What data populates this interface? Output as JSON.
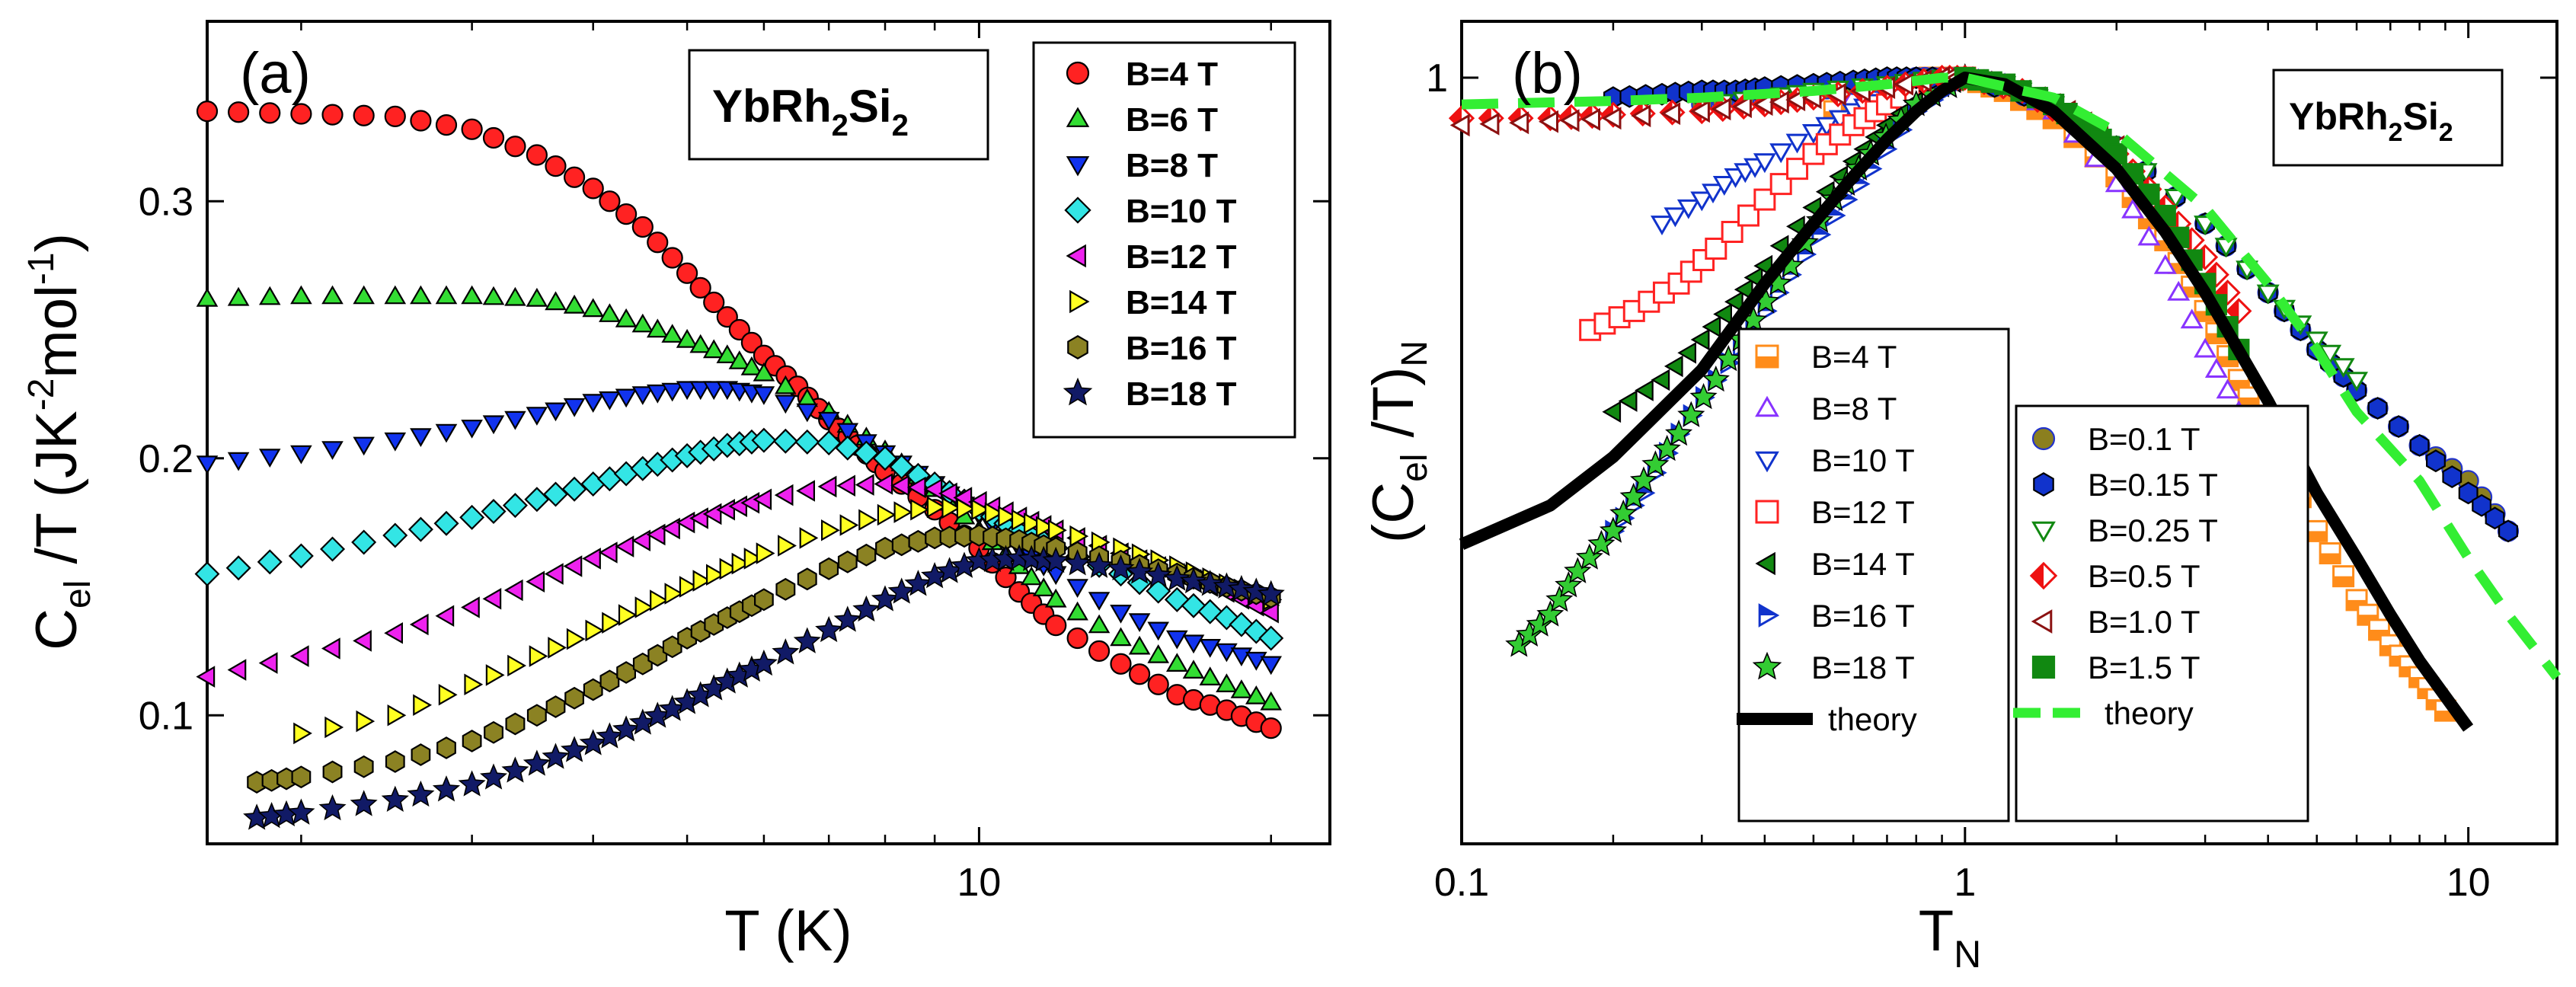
{
  "figure": {
    "panel_a": {
      "label": "(a)",
      "material": "YbRh",
      "sub1": "2",
      "mid": "Si",
      "sub2": "2"
    },
    "panel_b": {
      "label": "(b)",
      "material": "YbRh",
      "sub1": "2",
      "mid": "Si",
      "sub2": "2"
    }
  },
  "chart_data": [
    {
      "id": "a",
      "type": "scatter",
      "xscale": "log",
      "xlim": [
        1.6,
        23
      ],
      "ylim": [
        0.05,
        0.37
      ],
      "xticks": [
        {
          "v": 10,
          "label": "10"
        }
      ],
      "yticks": [
        {
          "v": 0.1,
          "label": "0.1"
        },
        {
          "v": 0.2,
          "label": "0.2"
        },
        {
          "v": 0.3,
          "label": "0.3"
        }
      ],
      "xlabel": "T (K)",
      "ylabel": {
        "main": "C",
        "sub": "el",
        "rest": " /T (JK",
        "sup1": "-2",
        "rest2": "mol",
        "sup2": "-1",
        "close": ")"
      },
      "legend_position": "top-right",
      "series": [
        {
          "name": "B=4 T",
          "marker": "circle",
          "color": "#ff2222",
          "x": [
            1.6,
            2.0,
            2.5,
            3.0,
            3.5,
            4.0,
            4.5,
            5.0,
            5.5,
            6.0,
            6.5,
            7.0,
            7.5,
            8.0,
            9.0,
            10.0,
            11.0,
            12.0,
            14.0,
            16.0,
            18.0,
            20.0
          ],
          "y": [
            0.335,
            0.334,
            0.333,
            0.328,
            0.318,
            0.305,
            0.29,
            0.272,
            0.255,
            0.24,
            0.228,
            0.215,
            0.205,
            0.195,
            0.18,
            0.165,
            0.148,
            0.135,
            0.12,
            0.108,
            0.102,
            0.095
          ]
        },
        {
          "name": "B=6 T",
          "marker": "triangle-up",
          "color": "#33dd33",
          "x": [
            1.6,
            2.0,
            2.5,
            3.0,
            3.5,
            4.0,
            4.5,
            5.0,
            5.5,
            6.0,
            7.0,
            8.0,
            9.0,
            10.0,
            11.0,
            12.0,
            14.0,
            16.0,
            18.0,
            20.0
          ],
          "y": [
            0.262,
            0.263,
            0.263,
            0.263,
            0.262,
            0.258,
            0.252,
            0.246,
            0.24,
            0.233,
            0.218,
            0.203,
            0.188,
            0.172,
            0.158,
            0.145,
            0.13,
            0.12,
            0.112,
            0.105
          ]
        },
        {
          "name": "B=8 T",
          "marker": "triangle-down",
          "color": "#1133ee",
          "x": [
            1.6,
            2.0,
            2.5,
            3.0,
            3.5,
            4.0,
            4.5,
            5.0,
            5.5,
            6.0,
            7.0,
            8.0,
            9.0,
            10.0,
            11.0,
            12.0,
            14.0,
            16.0,
            18.0,
            20.0
          ],
          "y": [
            0.198,
            0.202,
            0.207,
            0.212,
            0.217,
            0.222,
            0.225,
            0.227,
            0.227,
            0.225,
            0.215,
            0.202,
            0.19,
            0.178,
            0.165,
            0.155,
            0.14,
            0.13,
            0.125,
            0.12
          ]
        },
        {
          "name": "B=10 T",
          "marker": "diamond",
          "color": "#33e5e5",
          "x": [
            1.6,
            2.0,
            2.5,
            3.0,
            3.5,
            4.0,
            4.5,
            5.0,
            5.5,
            6.0,
            7.0,
            8.0,
            9.0,
            10.0,
            11.0,
            12.0,
            14.0,
            16.0,
            18.0,
            20.0
          ],
          "y": [
            0.155,
            0.162,
            0.17,
            0.177,
            0.184,
            0.19,
            0.196,
            0.201,
            0.205,
            0.207,
            0.206,
            0.2,
            0.19,
            0.18,
            0.172,
            0.165,
            0.155,
            0.145,
            0.138,
            0.13
          ]
        },
        {
          "name": "B=12 T",
          "marker": "triangle-left",
          "color": "#ee22ee",
          "x": [
            1.6,
            2.0,
            2.5,
            3.0,
            3.5,
            4.0,
            4.5,
            5.0,
            5.5,
            6.0,
            7.0,
            8.0,
            9.0,
            10.0,
            11.0,
            12.0,
            14.0,
            16.0,
            18.0,
            20.0
          ],
          "y": [
            0.115,
            0.123,
            0.132,
            0.142,
            0.152,
            0.161,
            0.168,
            0.175,
            0.18,
            0.184,
            0.189,
            0.19,
            0.188,
            0.183,
            0.177,
            0.172,
            0.163,
            0.155,
            0.148,
            0.14
          ]
        },
        {
          "name": "B=14 T",
          "marker": "triangle-right",
          "color": "#ffff22",
          "x": [
            2.0,
            2.5,
            3.0,
            3.5,
            4.0,
            4.5,
            5.0,
            5.5,
            6.0,
            7.0,
            8.0,
            9.0,
            10.0,
            11.0,
            12.0,
            14.0,
            16.0,
            18.0,
            20.0
          ],
          "y": [
            0.093,
            0.1,
            0.112,
            0.123,
            0.133,
            0.142,
            0.15,
            0.157,
            0.163,
            0.172,
            0.178,
            0.181,
            0.18,
            0.176,
            0.172,
            0.165,
            0.158,
            0.151,
            0.145
          ]
        },
        {
          "name": "B=16 T",
          "marker": "hexagon",
          "color": "#8b8223",
          "x": [
            1.8,
            2.0,
            2.5,
            3.0,
            3.5,
            4.0,
            4.5,
            5.0,
            5.5,
            6.0,
            7.0,
            8.0,
            9.0,
            10.0,
            11.0,
            12.0,
            14.0,
            16.0,
            18.0,
            20.0
          ],
          "y": [
            0.074,
            0.076,
            0.082,
            0.09,
            0.1,
            0.11,
            0.12,
            0.13,
            0.138,
            0.145,
            0.157,
            0.165,
            0.169,
            0.17,
            0.168,
            0.165,
            0.16,
            0.155,
            0.15,
            0.146
          ]
        },
        {
          "name": "B=18 T",
          "marker": "star",
          "color": "#111a66",
          "x": [
            1.8,
            2.0,
            2.5,
            3.0,
            3.5,
            4.0,
            4.5,
            5.0,
            5.5,
            6.0,
            7.0,
            8.0,
            9.0,
            10.0,
            11.0,
            12.0,
            14.0,
            16.0,
            18.0,
            20.0
          ],
          "y": [
            0.06,
            0.062,
            0.067,
            0.073,
            0.081,
            0.089,
            0.097,
            0.105,
            0.113,
            0.12,
            0.133,
            0.145,
            0.154,
            0.16,
            0.161,
            0.16,
            0.157,
            0.153,
            0.15,
            0.147
          ]
        }
      ]
    },
    {
      "id": "b",
      "type": "scatter",
      "xscale": "log",
      "yscale": "log",
      "xlim": [
        0.1,
        15
      ],
      "ylim": [
        0.31,
        1.09
      ],
      "xticks": [
        {
          "v": 0.1,
          "label": "0.1"
        },
        {
          "v": 1,
          "label": "1"
        },
        {
          "v": 10,
          "label": "10"
        }
      ],
      "yticks": [
        {
          "v": 1,
          "label": "1"
        }
      ],
      "xlabel": {
        "main": "T",
        "sub": "N"
      },
      "ylabel": {
        "open": "(C",
        "sub": "el",
        "rest": " /T)",
        "sub2": "N"
      },
      "legend_position": "lower-middle",
      "series": [
        {
          "name": "B=4 T",
          "marker": "square-half",
          "color": "#ff8c1a",
          "x": [
            0.55,
            0.7,
            0.85,
            1.0,
            1.2,
            1.5,
            2.0,
            2.5,
            3.0,
            3.5,
            4.0,
            5.0,
            6.0,
            7.0,
            8.0,
            9.0
          ],
          "y": [
            0.95,
            0.98,
            1.0,
            1.0,
            0.98,
            0.94,
            0.86,
            0.78,
            0.7,
            0.63,
            0.58,
            0.5,
            0.45,
            0.42,
            0.4,
            0.38
          ]
        },
        {
          "name": "B=8 T",
          "marker": "triangle-up-open",
          "color": "#8833ff",
          "x": [
            0.6,
            0.8,
            1.0,
            1.2,
            1.5,
            2.0,
            2.5,
            3.0,
            3.5
          ],
          "y": [
            0.97,
            0.99,
            1.0,
            0.99,
            0.95,
            0.85,
            0.75,
            0.66,
            0.6
          ]
        },
        {
          "name": "B=10 T",
          "marker": "triangle-down-open",
          "color": "#1133cc",
          "x": [
            0.25,
            0.3,
            0.35,
            0.4,
            0.5,
            0.6,
            0.7,
            0.8,
            1.0
          ],
          "y": [
            0.8,
            0.83,
            0.86,
            0.88,
            0.92,
            0.95,
            0.97,
            0.99,
            1.0
          ]
        },
        {
          "name": "B=12 T",
          "marker": "square-open",
          "color": "#ff2222",
          "x": [
            0.18,
            0.22,
            0.27,
            0.32,
            0.4,
            0.5,
            0.6,
            0.7,
            0.85,
            1.0
          ],
          "y": [
            0.68,
            0.7,
            0.73,
            0.77,
            0.83,
            0.89,
            0.93,
            0.96,
            0.99,
            1.0
          ]
        },
        {
          "name": "B=14 T",
          "marker": "triangle-left",
          "color": "#118811",
          "x": [
            0.2,
            0.25,
            0.3,
            0.35,
            0.4,
            0.5,
            0.6,
            0.7,
            0.85,
            1.0
          ],
          "y": [
            0.6,
            0.63,
            0.67,
            0.71,
            0.75,
            0.82,
            0.88,
            0.93,
            0.98,
            1.0
          ]
        },
        {
          "name": "B=16 T",
          "marker": "triangle-right-half",
          "color": "#1133cc",
          "x": [
            0.2,
            0.23,
            0.27,
            0.32,
            0.38,
            0.45,
            0.55,
            0.65,
            0.8,
            1.0
          ],
          "y": [
            0.5,
            0.53,
            0.58,
            0.63,
            0.68,
            0.74,
            0.81,
            0.87,
            0.95,
            1.0
          ]
        },
        {
          "name": "B=18 T",
          "marker": "star",
          "color": "#33cc33",
          "x": [
            0.13,
            0.15,
            0.17,
            0.2,
            0.23,
            0.27,
            0.32,
            0.38,
            0.45,
            0.55,
            0.65,
            0.8,
            1.0
          ],
          "y": [
            0.42,
            0.44,
            0.47,
            0.5,
            0.54,
            0.58,
            0.63,
            0.69,
            0.75,
            0.83,
            0.89,
            0.96,
            1.0
          ]
        },
        {
          "name": "theory",
          "marker": "line",
          "color": "#000000",
          "x": [
            0.1,
            0.15,
            0.2,
            0.3,
            0.4,
            0.5,
            0.6,
            0.7,
            0.8,
            0.9,
            1.0,
            1.2,
            1.5,
            2.0,
            2.5,
            3.0,
            4.0,
            5.0,
            6.0,
            7.0,
            8.0,
            10.0
          ],
          "y": [
            0.49,
            0.52,
            0.56,
            0.64,
            0.73,
            0.8,
            0.86,
            0.91,
            0.95,
            0.98,
            1.0,
            0.99,
            0.95,
            0.87,
            0.79,
            0.72,
            0.61,
            0.53,
            0.48,
            0.44,
            0.41,
            0.37
          ]
        },
        {
          "name": "B=0.1 T",
          "marker": "circle",
          "color": "#8b7f1f",
          "stroke": "#2233cc",
          "x": [
            0.3,
            0.4,
            0.5,
            0.6,
            0.7,
            0.8,
            0.9,
            1.0,
            1.5,
            2.0,
            3.0,
            4.0,
            5.0,
            6.0,
            8.0,
            10.0,
            12.0
          ],
          "y": [
            0.96,
            0.97,
            0.98,
            0.99,
            0.995,
            1.0,
            1.0,
            1.0,
            0.96,
            0.9,
            0.8,
            0.72,
            0.66,
            0.62,
            0.57,
            0.54,
            0.5
          ]
        },
        {
          "name": "B=0.15 T",
          "marker": "hexagon",
          "color": "#1133cc",
          "x": [
            0.2,
            0.25,
            0.3,
            0.35,
            0.4,
            0.5,
            0.6,
            0.7,
            0.8,
            1.0,
            1.5,
            2.0,
            3.0,
            4.0,
            5.0,
            6.0,
            8.0,
            10.0,
            12.0
          ],
          "y": [
            0.97,
            0.975,
            0.98,
            0.98,
            0.985,
            0.99,
            0.995,
            1.0,
            1.0,
            1.0,
            0.96,
            0.9,
            0.8,
            0.72,
            0.66,
            0.62,
            0.57,
            0.53,
            0.5
          ]
        },
        {
          "name": "B=0.25 T",
          "marker": "triangle-down-open",
          "color": "#118811",
          "x": [
            0.3,
            0.4,
            0.5,
            0.7,
            0.9,
            1.2,
            1.5,
            2.0,
            3.0,
            4.0,
            5.0,
            6.0
          ],
          "y": [
            0.96,
            0.97,
            0.98,
            0.99,
            1.0,
            0.99,
            0.96,
            0.9,
            0.8,
            0.72,
            0.67,
            0.63
          ]
        },
        {
          "name": "B=0.5 T",
          "marker": "diamond-half",
          "color": "#ee1111",
          "x": [
            0.1,
            0.15,
            0.2,
            0.3,
            0.4,
            0.5,
            0.7,
            0.9,
            1.0,
            1.3,
            1.6,
            2.0,
            2.5,
            3.0,
            3.5
          ],
          "y": [
            0.94,
            0.94,
            0.945,
            0.95,
            0.96,
            0.97,
            0.985,
            1.0,
            1.0,
            0.98,
            0.94,
            0.89,
            0.82,
            0.76,
            0.7
          ]
        },
        {
          "name": "B=1.0 T",
          "marker": "triangle-left-open",
          "color": "#8b1111",
          "x": [
            0.1,
            0.15,
            0.2,
            0.3,
            0.4,
            0.5,
            0.7,
            0.9,
            1.0,
            1.3,
            1.6,
            2.0
          ],
          "y": [
            0.93,
            0.935,
            0.94,
            0.95,
            0.96,
            0.97,
            0.985,
            1.0,
            1.0,
            0.98,
            0.95,
            0.9
          ]
        },
        {
          "name": "B=1.5 T",
          "marker": "square",
          "color": "#118811",
          "x": [
            1.0,
            1.2,
            1.5,
            1.8,
            2.0,
            2.5,
            3.0,
            3.5
          ],
          "y": [
            1.0,
            0.99,
            0.96,
            0.92,
            0.89,
            0.81,
            0.73,
            0.66
          ]
        },
        {
          "name": "theory",
          "marker": "dashed-line",
          "color": "#33ee33",
          "x": [
            0.1,
            0.2,
            0.3,
            0.5,
            0.7,
            0.9,
            1.0,
            1.5,
            2.0,
            3.0,
            4.0,
            5.0,
            6.0,
            8.0,
            10.0,
            12.0,
            15.0
          ],
          "y": [
            0.96,
            0.965,
            0.97,
            0.98,
            0.99,
            1.0,
            1.0,
            0.97,
            0.92,
            0.82,
            0.73,
            0.66,
            0.6,
            0.54,
            0.48,
            0.44,
            0.4
          ]
        }
      ]
    }
  ]
}
